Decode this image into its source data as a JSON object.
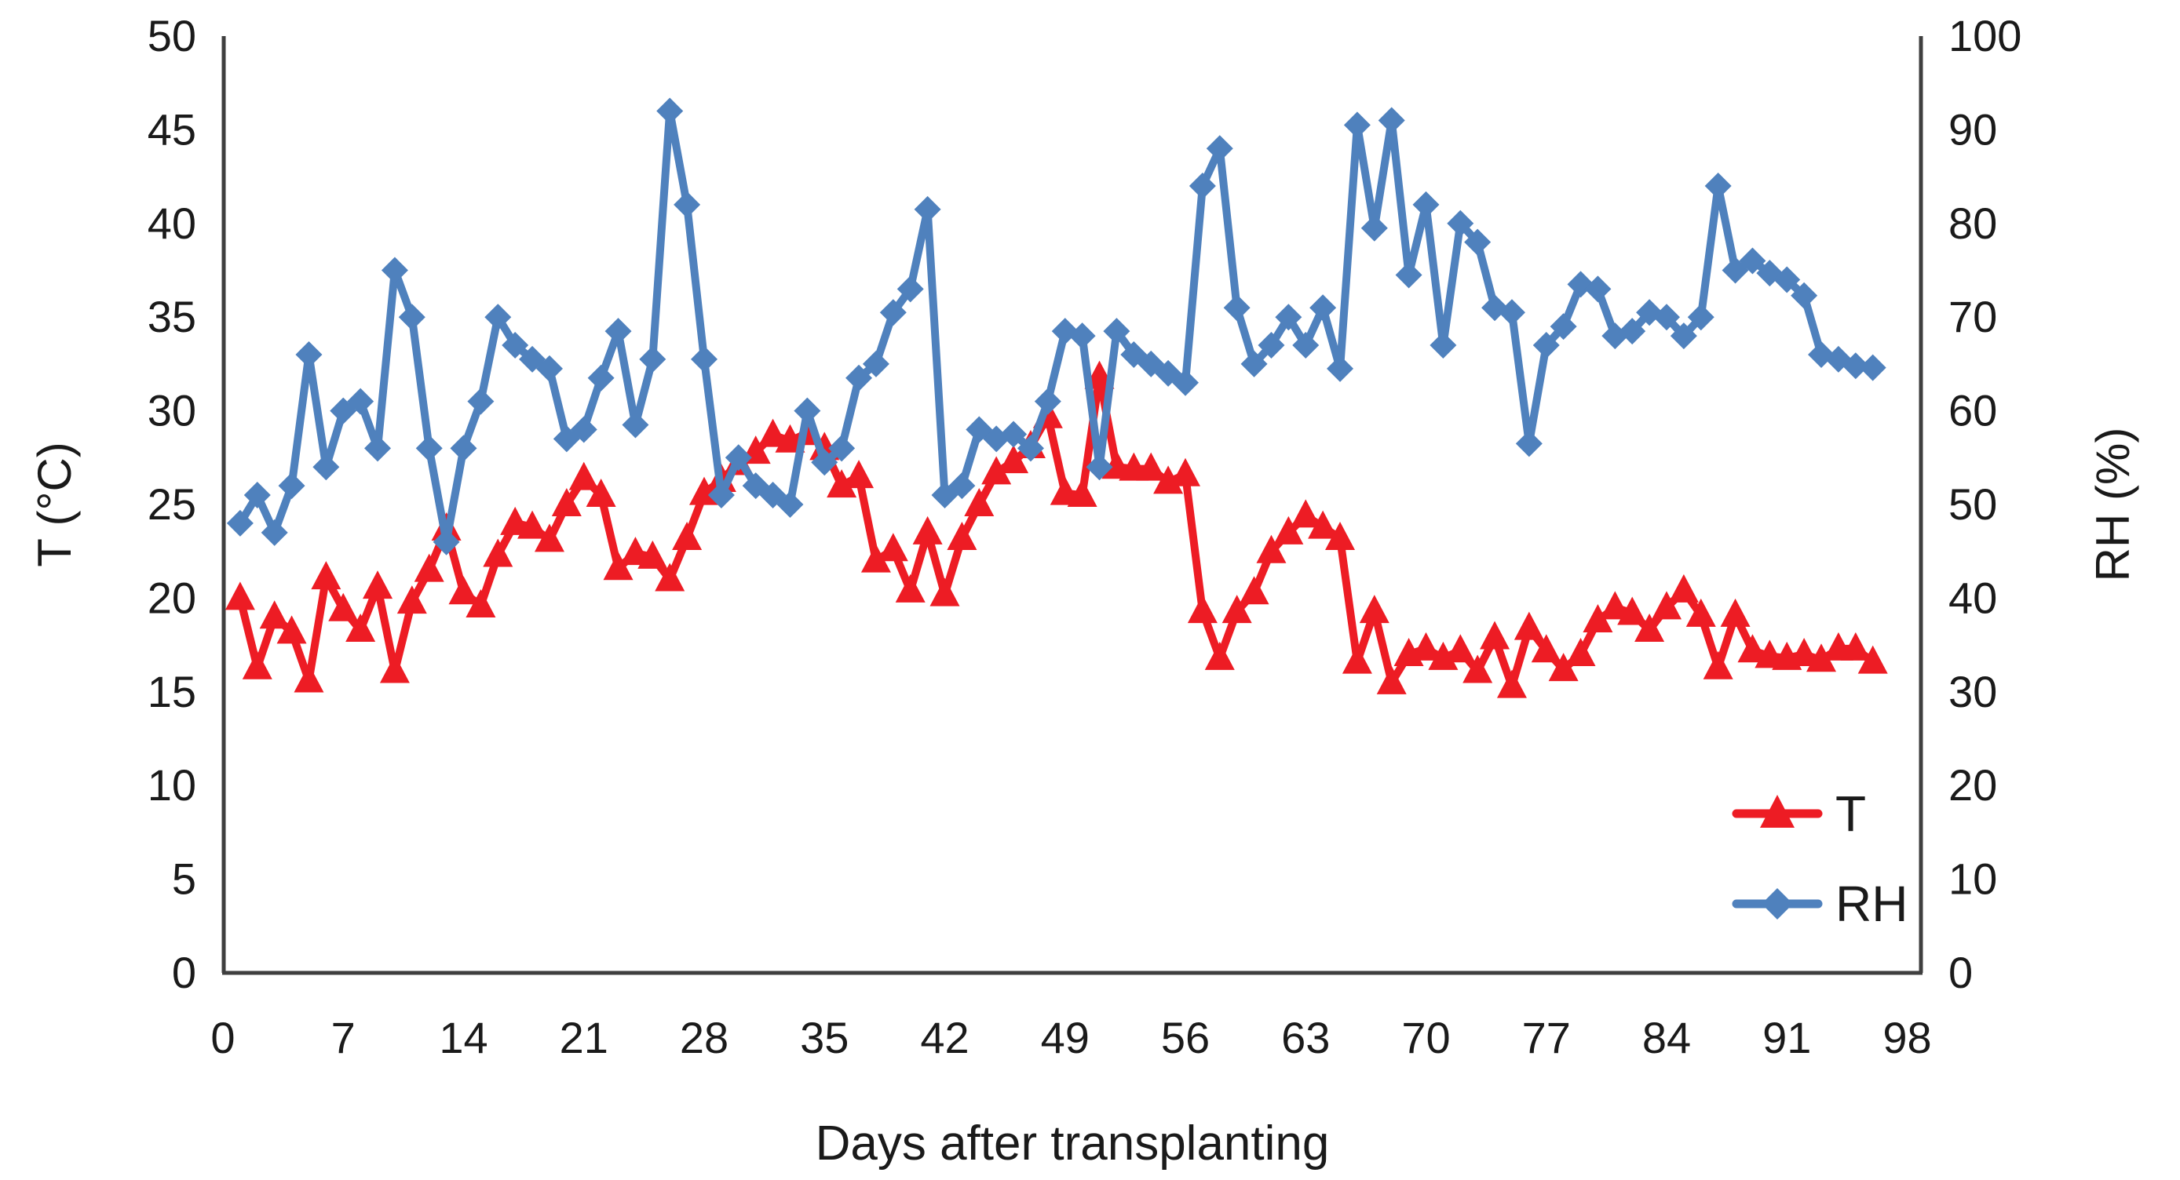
{
  "chart_data": {
    "type": "line",
    "title": "",
    "xlabel": "Days after transplanting",
    "ylabel_left": "T (°C)",
    "ylabel_right": "RH (%)",
    "x_ticks": [
      0,
      7,
      14,
      21,
      28,
      35,
      42,
      49,
      56,
      63,
      70,
      77,
      84,
      91,
      98
    ],
    "xlim": [
      0,
      98.8
    ],
    "ylim_left": [
      0,
      50
    ],
    "yticks_left": [
      0,
      5,
      10,
      15,
      20,
      25,
      30,
      35,
      40,
      45,
      50
    ],
    "ylim_right": [
      0,
      100
    ],
    "yticks_right": [
      0,
      10,
      20,
      30,
      40,
      50,
      60,
      70,
      80,
      90,
      100
    ],
    "grid": false,
    "legend_position": "inside-bottom-right",
    "legend": [
      {
        "label": "T",
        "color": "#ED1C24",
        "marker": "triangle"
      },
      {
        "label": "RH",
        "color": "#4F81BD",
        "marker": "diamond"
      }
    ],
    "x_start_day": 1,
    "x_step": 1,
    "series": [
      {
        "name": "T",
        "axis": "left",
        "color": "#ED1C24",
        "marker": "triangle",
        "values": [
          20.0,
          16.3,
          19.0,
          18.2,
          15.6,
          21.1,
          19.4,
          18.3,
          20.6,
          16.1,
          19.8,
          21.5,
          23.7,
          20.3,
          19.6,
          22.3,
          24.0,
          23.8,
          23.1,
          25.0,
          26.4,
          25.5,
          21.6,
          22.4,
          22.2,
          21.0,
          23.2,
          25.6,
          26.3,
          27.2,
          27.8,
          28.7,
          28.4,
          28.8,
          28.0,
          26.0,
          26.5,
          22.0,
          22.6,
          20.4,
          23.5,
          20.2,
          23.2,
          25.0,
          26.7,
          27.3,
          28.1,
          29.7,
          25.6,
          25.5,
          31.8,
          27.0,
          26.9,
          26.9,
          26.2,
          26.6,
          19.3,
          16.8,
          19.3,
          20.3,
          22.5,
          23.5,
          24.4,
          23.8,
          23.2,
          16.6,
          19.3,
          15.5,
          17.0,
          17.3,
          16.8,
          17.2,
          16.1,
          17.9,
          15.3,
          18.4,
          17.2,
          16.2,
          17.0,
          18.8,
          19.5,
          19.2,
          18.3,
          19.5,
          20.4,
          19.1,
          16.3,
          19.1,
          17.2,
          16.9,
          16.8,
          17.0,
          16.7,
          17.3,
          17.3,
          16.6
        ]
      },
      {
        "name": "RH",
        "axis": "right",
        "color": "#4F81BD",
        "marker": "diamond",
        "values": [
          48,
          51,
          47,
          52,
          66,
          54,
          60,
          61,
          56,
          75,
          70,
          56,
          46,
          56,
          61,
          70,
          67,
          65.5,
          64.5,
          57,
          58,
          63.5,
          68.5,
          58.5,
          65.5,
          92,
          82,
          65.5,
          51,
          55,
          52,
          51,
          50,
          60,
          54.5,
          56,
          63.5,
          65,
          70.5,
          73,
          81.5,
          51,
          52,
          58,
          57,
          57.5,
          56,
          61,
          68.5,
          68,
          54,
          68.5,
          66,
          65,
          64,
          63,
          84,
          88,
          71,
          65,
          67,
          70,
          67,
          71,
          64.5,
          90.5,
          79.5,
          91,
          74.5,
          82,
          67,
          80,
          78,
          71,
          70.5,
          56.5,
          67,
          69,
          73.5,
          73,
          68,
          68.5,
          70.5,
          70,
          68,
          70,
          84,
          75,
          76,
          74.7,
          74,
          72.3,
          66,
          65.5,
          64.8,
          64.6
        ]
      }
    ],
    "colors": {
      "axis_line": "#3f3f3f",
      "tick_text": "#1a1a1a",
      "background": "#ffffff"
    }
  }
}
